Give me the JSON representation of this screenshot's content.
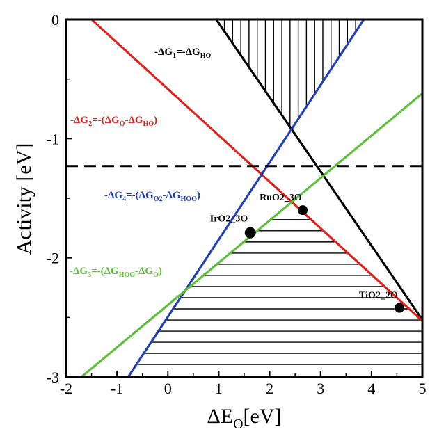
{
  "chart_data": {
    "type": "line",
    "title": "",
    "xlabel": {
      "main": "ΔE",
      "sub": "O",
      "rest": "[eV]"
    },
    "ylabel": "Activity [eV]",
    "xlim": [
      -2,
      5
    ],
    "ylim": [
      -3,
      0
    ],
    "xticks": [
      -2,
      -1,
      0,
      1,
      2,
      3,
      4,
      5
    ],
    "yticks": [
      -3,
      -2,
      -1,
      0
    ],
    "xtick_labels": [
      "-2",
      "-1",
      "0",
      "1",
      "2",
      "3",
      "4",
      "5"
    ],
    "ytick_labels": [
      "-3",
      "-2",
      "-1",
      "0"
    ],
    "grid": false,
    "series": [
      {
        "key": "g1",
        "color": "#000000",
        "x": [
          0.95,
          5.0
        ],
        "y": [
          0.0,
          -2.52
        ]
      },
      {
        "key": "g2",
        "color": "#e0201c",
        "x": [
          -1.5,
          5.0
        ],
        "y": [
          0.0,
          -2.53
        ]
      },
      {
        "key": "g4",
        "color": "#2241b8",
        "x": [
          -0.78,
          3.85
        ],
        "y": [
          -3.0,
          0.0
        ]
      },
      {
        "key": "g3",
        "color": "#5fbf3a",
        "x": [
          -1.7,
          5.0
        ],
        "y": [
          -3.0,
          -0.62
        ]
      }
    ],
    "reference_line": {
      "y": -1.23,
      "style": "dashed",
      "color": "#000000"
    },
    "points": [
      {
        "label": "RuO2_3O",
        "x": 2.65,
        "y": -1.6
      },
      {
        "label": "IrO2_3O",
        "x": 1.62,
        "y": -1.79
      },
      {
        "label": "TiO2_2O",
        "x": 4.55,
        "y": -2.42
      }
    ],
    "annotations": {
      "g1": {
        "parts": [
          [
            "-ΔG",
            ""
          ],
          [
            "1",
            "sub"
          ],
          [
            "=-ΔG",
            ""
          ],
          [
            "HO",
            "sub"
          ]
        ]
      },
      "g2": {
        "parts": [
          [
            "-ΔG",
            ""
          ],
          [
            "2",
            "sub"
          ],
          [
            "=-(ΔG",
            ""
          ],
          [
            "O",
            "sub"
          ],
          [
            "-ΔG",
            ""
          ],
          [
            "HO",
            "sub"
          ],
          [
            ")",
            ""
          ]
        ]
      },
      "g4": {
        "parts": [
          [
            "-ΔG",
            ""
          ],
          [
            "4",
            "sub"
          ],
          [
            "=-(ΔG",
            ""
          ],
          [
            "O",
            "sub"
          ],
          [
            "2",
            "sub"
          ],
          [
            "-ΔG",
            ""
          ],
          [
            "HOO",
            "sub"
          ],
          [
            ")",
            ""
          ]
        ]
      },
      "g3": {
        "parts": [
          [
            "-ΔG",
            ""
          ],
          [
            "3",
            "sub"
          ],
          [
            "=-(ΔG",
            ""
          ],
          [
            "HOO",
            "sub"
          ],
          [
            "-ΔG",
            ""
          ],
          [
            "O",
            "sub"
          ],
          [
            ")",
            ""
          ]
        ]
      }
    }
  }
}
